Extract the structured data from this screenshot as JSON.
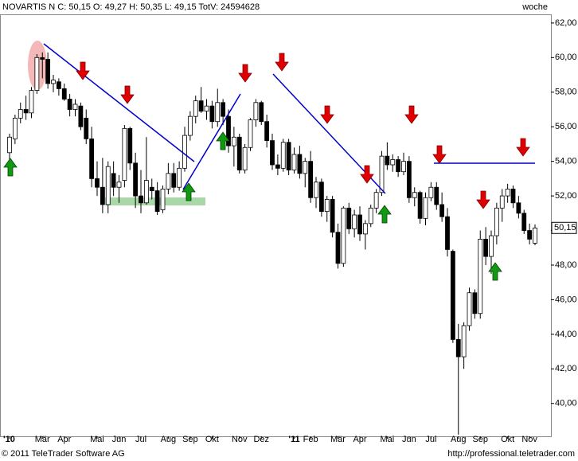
{
  "chart_data": {
    "type": "candlestick",
    "title": "NOVARTIS N C: 50,15 O: 49,27 H: 50,35 L: 49,15 TotV: 24594628",
    "period": "woche",
    "footer_left": "© 2011 TeleTrader Software AG",
    "footer_right": "http://professional.teletrader.com",
    "last_price": {
      "value": 50.15,
      "label": "50,15"
    },
    "up_color": "#ffffff",
    "down_color": "#000000",
    "ylim": [
      38.1,
      63.1
    ],
    "yticks": [
      {
        "value": 40,
        "label": "40,00"
      },
      {
        "value": 42,
        "label": "42,00"
      },
      {
        "value": 44,
        "label": "44,00"
      },
      {
        "value": 46,
        "label": "46,00"
      },
      {
        "value": 48,
        "label": "48,00"
      },
      {
        "value": 50,
        "label": "50,00"
      },
      {
        "value": 52,
        "label": "52,00"
      },
      {
        "value": 54,
        "label": "54,00"
      },
      {
        "value": 56,
        "label": "56,00"
      },
      {
        "value": 58,
        "label": "58,00"
      },
      {
        "value": 60,
        "label": "60,00"
      },
      {
        "value": 62,
        "label": "62,00"
      }
    ],
    "categories": [
      "'10",
      null,
      null,
      null,
      null,
      null,
      "Mär",
      null,
      null,
      null,
      "Apr",
      null,
      null,
      null,
      null,
      null,
      "Mai",
      null,
      null,
      null,
      "Jun",
      null,
      null,
      null,
      "Jul",
      null,
      null,
      null,
      null,
      "Aug",
      null,
      null,
      null,
      "Sep",
      null,
      null,
      null,
      "Okt",
      null,
      null,
      null,
      null,
      "Nov",
      null,
      null,
      null,
      "Dez",
      null,
      null,
      null,
      null,
      null,
      "'11",
      null,
      null,
      "Feb",
      null,
      null,
      null,
      null,
      "Mär",
      null,
      null,
      null,
      "Apr",
      null,
      null,
      null,
      null,
      "Mai",
      null,
      null,
      null,
      "Jun",
      null,
      null,
      null,
      "Jul",
      null,
      null,
      null,
      null,
      "Aug",
      null,
      null,
      null,
      "Sep",
      null,
      null,
      null,
      null,
      "Okt",
      null,
      null,
      null,
      "Nov",
      null
    ],
    "ohlc": [
      [
        54.5,
        55.6,
        53.8,
        55.4
      ],
      [
        55.3,
        56.7,
        55,
        56.5
      ],
      [
        56.5,
        57.4,
        56.2,
        57
      ],
      [
        57,
        57.8,
        56.4,
        56.8
      ],
      [
        56.8,
        58.3,
        56.5,
        58.1
      ],
      [
        58.1,
        60.2,
        57.9,
        60
      ],
      [
        60,
        60.3,
        58.8,
        59.9
      ],
      [
        59.9,
        60.3,
        58.2,
        58.5
      ],
      [
        58.5,
        59,
        58,
        58.7
      ],
      [
        58.6,
        58.8,
        57.8,
        58.2
      ],
      [
        58.2,
        58.5,
        57.5,
        57.6
      ],
      [
        57.6,
        57.9,
        56.6,
        57
      ],
      [
        57,
        57.6,
        56.6,
        57.3
      ],
      [
        57.2,
        57.4,
        55.8,
        56
      ],
      [
        56.5,
        57,
        55,
        55.3
      ],
      [
        55.3,
        56,
        52.5,
        53
      ],
      [
        53,
        54,
        52,
        52.5
      ],
      [
        52.5,
        54.2,
        51,
        51.5
      ],
      [
        51.5,
        54,
        51,
        53.7
      ],
      [
        53.3,
        54,
        52,
        52.5
      ],
      [
        52.5,
        53.2,
        51.6,
        52.8
      ],
      [
        52.9,
        56.1,
        52.5,
        55.9
      ],
      [
        55.9,
        56,
        53.5,
        53.9
      ],
      [
        53.9,
        54.5,
        51.3,
        52
      ],
      [
        52,
        53.5,
        51,
        51.6
      ],
      [
        51.6,
        55.4,
        51.5,
        52.9
      ],
      [
        52.5,
        53,
        51.8,
        52.3
      ],
      [
        52.3,
        52.8,
        50.9,
        51.1
      ],
      [
        51.2,
        52.6,
        51,
        52.4
      ],
      [
        52.4,
        53.9,
        52.1,
        53.3
      ],
      [
        53.3,
        53.9,
        52.2,
        52.5
      ],
      [
        52.5,
        54,
        52.3,
        53.6
      ],
      [
        53.6,
        56,
        53.4,
        55.5
      ],
      [
        55.5,
        56.9,
        55.2,
        56.6
      ],
      [
        56.6,
        57.8,
        56.2,
        57.5
      ],
      [
        57.5,
        58.3,
        56.8,
        56.9
      ],
      [
        56.9,
        57.6,
        56.4,
        57.2
      ],
      [
        57.2,
        57.5,
        55.9,
        56.3
      ],
      [
        56.3,
        58.2,
        56,
        57.4
      ],
      [
        57.4,
        57.6,
        56.1,
        56.6
      ],
      [
        56.6,
        57,
        54.5,
        54.9
      ],
      [
        54.9,
        56,
        53.7,
        55.4
      ],
      [
        55.4,
        55.6,
        53.3,
        53.5
      ],
      [
        53.5,
        55,
        53.3,
        54.8
      ],
      [
        54.8,
        56.5,
        54.6,
        56.4
      ],
      [
        56.4,
        57.6,
        56,
        57.4
      ],
      [
        57.4,
        57.5,
        56.1,
        56.3
      ],
      [
        56.3,
        56.7,
        54.8,
        55.2
      ],
      [
        55.2,
        55.6,
        53.5,
        53.8
      ],
      [
        53.8,
        54.4,
        53.2,
        53.6
      ],
      [
        53.6,
        55.3,
        53.4,
        55.1
      ],
      [
        55.1,
        55.3,
        53.2,
        53.5
      ],
      [
        53.5,
        54.8,
        53.3,
        54.4
      ],
      [
        54.4,
        54.9,
        53,
        53.3
      ],
      [
        53.3,
        54.2,
        52.5,
        54
      ],
      [
        54,
        54.6,
        51.6,
        51.9
      ],
      [
        51.9,
        53.1,
        51.3,
        52.8
      ],
      [
        52.8,
        53,
        50.8,
        51.1
      ],
      [
        51.1,
        52,
        50.5,
        51.8
      ],
      [
        51.8,
        52,
        49.6,
        49.9
      ],
      [
        49.9,
        50.4,
        47.8,
        48.1
      ],
      [
        48.1,
        51.4,
        47.9,
        51.3
      ],
      [
        51.3,
        51.6,
        49.8,
        50.1
      ],
      [
        50.1,
        51.2,
        49.6,
        50.9
      ],
      [
        50.9,
        51.4,
        49.4,
        49.8
      ],
      [
        49.8,
        50.6,
        48.9,
        50.4
      ],
      [
        50.4,
        51.5,
        50.2,
        51.3
      ],
      [
        51.3,
        52.4,
        51,
        52.2
      ],
      [
        52.2,
        54.6,
        52,
        54.3
      ],
      [
        54.3,
        55.1,
        53.5,
        53.8
      ],
      [
        53.8,
        54.4,
        53.4,
        54.1
      ],
      [
        54.1,
        54.3,
        53.1,
        53.4
      ],
      [
        53.4,
        54.5,
        53.2,
        54
      ],
      [
        54,
        54.3,
        51.6,
        51.9
      ],
      [
        51.9,
        52.5,
        51.4,
        52.2
      ],
      [
        52.2,
        52.3,
        50.4,
        50.7
      ],
      [
        50.7,
        52.2,
        50.3,
        51.9
      ],
      [
        51.9,
        52.8,
        51.7,
        52.5
      ],
      [
        52.5,
        52.8,
        51.2,
        51.5
      ],
      [
        51.5,
        52.2,
        50.5,
        50.8
      ],
      [
        50.8,
        51.3,
        48.5,
        48.9
      ],
      [
        48.8,
        48.9,
        43.5,
        43.7
      ],
      [
        43.7,
        44.6,
        38.2,
        42.7
      ],
      [
        42.7,
        44.7,
        42,
        44.5
      ],
      [
        44.5,
        46.7,
        44.2,
        46.4
      ],
      [
        46.4,
        46.6,
        44.9,
        45.2
      ],
      [
        45.2,
        50,
        44.9,
        49.5
      ],
      [
        49.5,
        50.2,
        48,
        48.5
      ],
      [
        48.5,
        50,
        47.5,
        49.7
      ],
      [
        49.7,
        51.6,
        49.2,
        51.3
      ],
      [
        51.3,
        52.4,
        50.5,
        52
      ],
      [
        52,
        52.7,
        51.6,
        52.4
      ],
      [
        52.4,
        52.6,
        51.3,
        51.6
      ],
      [
        51.6,
        52,
        50.7,
        51
      ],
      [
        51,
        51.2,
        49.8,
        50
      ],
      [
        50,
        50.4,
        49.2,
        49.5
      ],
      [
        49.27,
        50.35,
        49.15,
        50.15
      ]
    ]
  }
}
